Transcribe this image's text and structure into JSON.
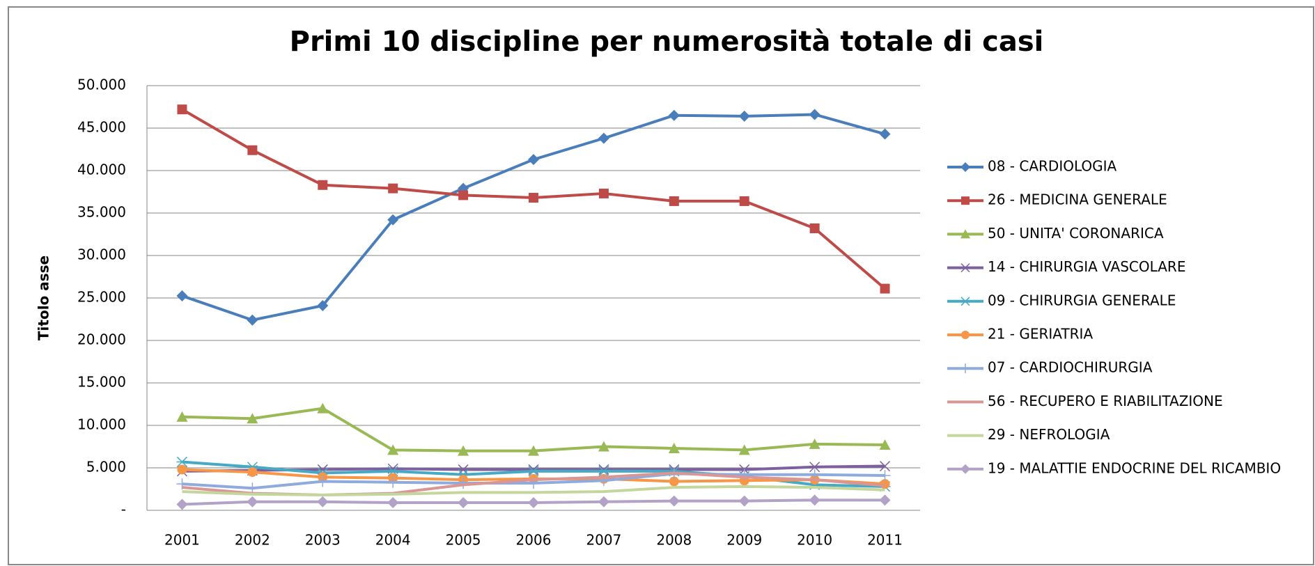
{
  "chart_data": {
    "type": "line",
    "title": "Primi 10 discipline per numerosità totale di casi",
    "y_label": "Titolo asse",
    "categories": [
      "2001",
      "2002",
      "2003",
      "2004",
      "2005",
      "2006",
      "2007",
      "2008",
      "2009",
      "2010",
      "2011"
    ],
    "ylim": [
      0,
      50000
    ],
    "yticks": [
      {
        "value": 0,
        "label": "-"
      },
      {
        "value": 5000,
        "label": "5.000"
      },
      {
        "value": 10000,
        "label": "10.000"
      },
      {
        "value": 15000,
        "label": "15.000"
      },
      {
        "value": 20000,
        "label": "20.000"
      },
      {
        "value": 25000,
        "label": "25.000"
      },
      {
        "value": 30000,
        "label": "30.000"
      },
      {
        "value": 35000,
        "label": "35.000"
      },
      {
        "value": 40000,
        "label": "40.000"
      },
      {
        "value": 45000,
        "label": "45.000"
      },
      {
        "value": 50000,
        "label": "50.000"
      }
    ],
    "grid": true,
    "legend": "right",
    "series": [
      {
        "name": "08 - CARDIOLOGIA",
        "color": "#4a7ebb",
        "marker": "diamond",
        "values": [
          25250,
          22400,
          24100,
          34200,
          37900,
          41300,
          43800,
          46500,
          46400,
          46600,
          44300
        ]
      },
      {
        "name": "26 - MEDICINA GENERALE",
        "color": "#be4b48",
        "marker": "square",
        "values": [
          47200,
          42400,
          38300,
          37900,
          37100,
          36800,
          37300,
          36400,
          36400,
          33200,
          26100
        ]
      },
      {
        "name": "50 - UNITA' CORONARICA",
        "color": "#98b954",
        "marker": "triangle",
        "values": [
          11000,
          10800,
          12000,
          7100,
          7000,
          7000,
          7500,
          7300,
          7100,
          7800,
          7700
        ]
      },
      {
        "name": "14 - CHIRURGIA VASCOLARE",
        "color": "#7d60a0",
        "marker": "x",
        "values": [
          4600,
          4700,
          4800,
          4900,
          4800,
          4800,
          4800,
          4800,
          4800,
          5100,
          5200
        ]
      },
      {
        "name": "09 - CHIRURGIA GENERALE",
        "color": "#46aac5",
        "marker": "star",
        "values": [
          5700,
          5100,
          4400,
          4600,
          4200,
          4600,
          4600,
          4600,
          4000,
          3000,
          2800
        ]
      },
      {
        "name": "21 - GERIATRIA",
        "color": "#f79646",
        "marker": "circle",
        "values": [
          4800,
          4500,
          3900,
          3800,
          3600,
          3700,
          3700,
          3400,
          3500,
          3600,
          3100
        ]
      },
      {
        "name": "07 - CARDIOCHIRURGIA",
        "color": "#8faadc",
        "marker": "plus",
        "values": [
          3100,
          2600,
          3400,
          3300,
          3200,
          3200,
          3500,
          4300,
          4200,
          4200,
          4100
        ]
      },
      {
        "name": "56 - RECUPERO E RIABILITAZIONE",
        "color": "#d99694",
        "marker": "none",
        "values": [
          2700,
          2000,
          1800,
          2000,
          3000,
          3600,
          3900,
          4400,
          3900,
          3600,
          2900
        ]
      },
      {
        "name": "29 - NEFROLOGIA",
        "color": "#c3d69b",
        "marker": "none",
        "values": [
          2200,
          1900,
          1800,
          1900,
          2100,
          2100,
          2200,
          2700,
          2800,
          2700,
          2400
        ]
      },
      {
        "name": "19 - MALATTIE ENDOCRINE DEL RICAMBIO",
        "color": "#b3a2c7",
        "marker": "diamond",
        "values": [
          700,
          1000,
          1000,
          900,
          900,
          900,
          1000,
          1100,
          1100,
          1200,
          1200
        ]
      }
    ]
  }
}
